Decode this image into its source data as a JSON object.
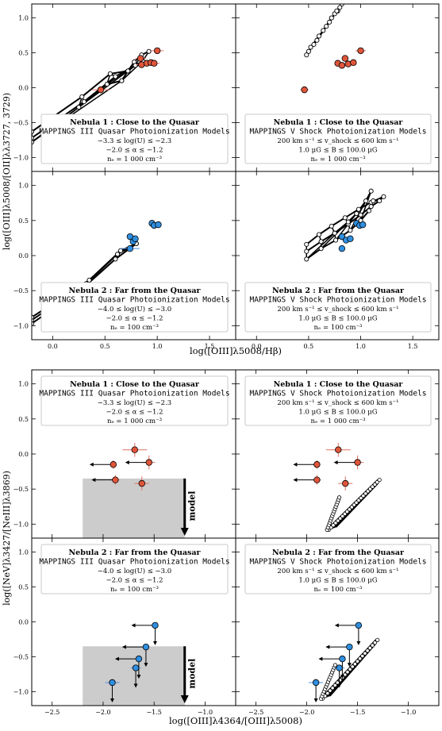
{
  "figure": {
    "top_ylabel": "log([OIII]λ5008/[OII]λλ3727, 3729)",
    "top_xlabel": "log([OIII]λ5008/Hβ)",
    "bottom_ylabel": "log([NeV]λ3427/[NeIII]λ3869)",
    "bottom_xlabel": "log([OIII]λ4364/[OIII]λ5008)",
    "model_label": "model",
    "top_yticks": [
      "−1.0",
      "−0.5",
      "0.0",
      "0.5",
      "1.0"
    ],
    "top_xticks": [
      "0.0",
      "0.5",
      "1.0",
      "1.5"
    ],
    "bottom_yticks": [
      "−1.0",
      "−0.5",
      "0.0",
      "0.5",
      "1.0"
    ],
    "bottom_xticks": [
      "−2.5",
      "−2.0",
      "−1.5",
      "−1.0"
    ]
  },
  "legends": {
    "n1_quasar": [
      "Nebula 1 :  Close to the Quasar",
      "MAPPINGS III Quasar Photoionization Models",
      "−3.3  ≤  log(U)  ≤  −2.3",
      "−2.0  ≤  α  ≤  −1.2",
      "nₑ = 1 000 cm⁻³"
    ],
    "n1_shock": [
      "Nebula 1 :  Close to the Quasar",
      "MAPPINGS V Shock Photoionization Models",
      "200 km s⁻¹  ≤  v_shock  ≤  600 km s⁻¹",
      "1.0 μG  ≤  B  ≤  100.0 μG",
      "nₑ = 1 000 cm⁻³"
    ],
    "n2_quasar": [
      "Nebula 2 :  Far from the Quasar",
      "MAPPINGS III Quasar Photoionization Models",
      "−4.0  ≤  log(U)  ≤  −3.0",
      "−2.0  ≤  α  ≤  −1.2",
      "nₑ = 100 cm⁻³"
    ],
    "n2_shock": [
      "Nebula 2 :  Far from the Quasar",
      "MAPPINGS V Shock Photoionization Models",
      "200 km s⁻¹  ≤  v_shock  ≤  600 km s⁻¹",
      "1.0 μG  ≤  B  ≤  100.0 μG",
      "nₑ = 100 cm⁻³"
    ]
  },
  "colors": {
    "nebula1": "#e0553a",
    "nebula2": "#2f8fe0",
    "errbar1": "#e07060",
    "errbar2": "#4a90e2",
    "shade": "#cccccc"
  },
  "chart_data": [
    {
      "type": "scatter",
      "panel": "top-left",
      "xlim": [
        -0.2,
        1.75
      ],
      "ylim": [
        -1.2,
        1.2
      ],
      "legend": "n1_quasar",
      "color": "nebula1",
      "points": [
        [
          0.46,
          -0.03
        ],
        [
          0.84,
          0.42
        ],
        [
          0.85,
          0.33
        ],
        [
          0.9,
          0.35
        ],
        [
          0.94,
          0.36
        ],
        [
          0.97,
          0.35
        ],
        [
          1.0,
          0.53
        ]
      ],
      "xerr": [
        0.08,
        0.05,
        0.05,
        0.05,
        0.05,
        0.05,
        0.06
      ],
      "grid_rows": [
        [
          [
            0.72,
            0.24
          ],
          [
            0.78,
            0.37
          ],
          [
            0.85,
            0.47
          ],
          [
            0.92,
            0.52
          ]
        ],
        [
          [
            0.66,
            0.1
          ],
          [
            0.72,
            0.24
          ],
          [
            0.79,
            0.32
          ],
          [
            0.86,
            0.38
          ]
        ],
        [
          [
            -0.2,
            -0.78
          ],
          [
            0.25,
            -0.28
          ],
          [
            0.52,
            0.05
          ],
          [
            0.66,
            0.1
          ]
        ],
        [
          [
            -0.2,
            -0.63
          ],
          [
            0.28,
            -0.13
          ],
          [
            0.55,
            0.2
          ],
          [
            0.72,
            0.24
          ]
        ],
        [
          [
            -0.2,
            -0.72
          ],
          [
            0.3,
            -0.2
          ],
          [
            0.6,
            0.16
          ],
          [
            0.79,
            0.32
          ]
        ]
      ]
    },
    {
      "type": "scatter",
      "panel": "top-right",
      "xlim": [
        -0.2,
        1.75
      ],
      "ylim": [
        -1.2,
        1.2
      ],
      "legend": "n1_shock",
      "color": "nebula1",
      "points": [
        [
          0.46,
          -0.03
        ],
        [
          0.78,
          0.35
        ],
        [
          0.82,
          0.32
        ],
        [
          0.85,
          0.42
        ],
        [
          0.88,
          0.34
        ],
        [
          0.93,
          0.36
        ],
        [
          1.0,
          0.53
        ]
      ],
      "xerr": [
        0.04,
        0,
        0,
        0,
        0,
        0,
        0.05
      ],
      "grid_rows": [
        [
          [
            0.48,
            0.47
          ],
          [
            0.55,
            0.62
          ],
          [
            0.64,
            0.82
          ],
          [
            0.72,
            1.0
          ],
          [
            0.78,
            1.1
          ],
          [
            0.82,
            1.2
          ]
        ],
        [
          [
            0.5,
            0.52
          ],
          [
            0.58,
            0.68
          ],
          [
            0.67,
            0.88
          ],
          [
            0.75,
            1.06
          ],
          [
            0.8,
            1.15
          ]
        ],
        [
          [
            0.52,
            0.58
          ],
          [
            0.6,
            0.74
          ],
          [
            0.7,
            0.94
          ],
          [
            0.77,
            1.1
          ]
        ]
      ]
    },
    {
      "type": "scatter",
      "panel": "mid-left",
      "xlim": [
        -0.2,
        1.75
      ],
      "ylim": [
        -1.2,
        1.2
      ],
      "legend": "n2_quasar",
      "color": "nebula2",
      "points": [
        [
          0.74,
          0.1
        ],
        [
          0.74,
          0.27
        ],
        [
          0.77,
          0.2
        ],
        [
          0.79,
          0.24
        ],
        [
          0.95,
          0.46
        ],
        [
          0.97,
          0.43
        ],
        [
          1.01,
          0.44
        ]
      ],
      "xerr": [
        0.09,
        0,
        0,
        0,
        0,
        0,
        0
      ],
      "grid_rows": [
        [
          [
            -0.2,
            -0.97
          ],
          [
            0.3,
            -0.45
          ],
          [
            0.6,
            -0.05
          ],
          [
            0.8,
            0.17
          ]
        ],
        [
          [
            -0.2,
            -0.92
          ],
          [
            0.32,
            -0.4
          ],
          [
            0.62,
            0.02
          ],
          [
            0.8,
            0.17
          ]
        ],
        [
          [
            -0.2,
            -0.88
          ],
          [
            0.35,
            -0.35
          ],
          [
            0.65,
            0.07
          ],
          [
            0.8,
            0.17
          ]
        ]
      ]
    },
    {
      "type": "scatter",
      "panel": "mid-right",
      "xlim": [
        -0.2,
        1.75
      ],
      "ylim": [
        -1.2,
        1.2
      ],
      "legend": "n2_shock",
      "color": "nebula2",
      "points": [
        [
          0.82,
          0.1
        ],
        [
          0.82,
          0.27
        ],
        [
          0.86,
          0.22
        ],
        [
          0.9,
          0.24
        ],
        [
          0.96,
          0.46
        ],
        [
          0.99,
          0.43
        ],
        [
          1.02,
          0.44
        ]
      ],
      "xerr": [
        0,
        0,
        0,
        0,
        0,
        0,
        0
      ],
      "grid_rows": [
        [
          [
            0.48,
            0.16
          ],
          [
            0.6,
            0.3
          ],
          [
            0.72,
            0.42
          ],
          [
            0.85,
            0.54
          ],
          [
            0.98,
            0.66
          ],
          [
            1.1,
            0.76
          ],
          [
            1.22,
            0.84
          ]
        ],
        [
          [
            0.48,
            0.06
          ],
          [
            0.62,
            0.2
          ],
          [
            0.75,
            0.32
          ],
          [
            0.88,
            0.45
          ],
          [
            1.0,
            0.58
          ],
          [
            1.1,
            0.7
          ],
          [
            1.18,
            0.78
          ]
        ],
        [
          [
            0.48,
            -0.05
          ],
          [
            0.62,
            0.1
          ],
          [
            0.76,
            0.22
          ],
          [
            0.9,
            0.36
          ],
          [
            1.0,
            0.5
          ],
          [
            1.08,
            0.64
          ],
          [
            1.12,
            0.78
          ]
        ],
        [
          [
            0.75,
            0.32
          ],
          [
            0.88,
            0.48
          ],
          [
            0.96,
            0.6
          ],
          [
            1.05,
            0.78
          ],
          [
            1.1,
            0.92
          ]
        ]
      ]
    },
    {
      "type": "scatter",
      "panel": "lower-left-1",
      "xlim": [
        -2.7,
        -0.7
      ],
      "ylim": [
        -1.2,
        1.2
      ],
      "legend": "n1_quasar",
      "color": "nebula1",
      "points": [
        [
          -1.9,
          -0.15,
          1,
          0
        ],
        [
          -1.69,
          0.06,
          0,
          0
        ],
        [
          -1.55,
          -0.12,
          1,
          0
        ],
        [
          -1.88,
          -0.37,
          1,
          0
        ],
        [
          -1.62,
          -0.42,
          0,
          0
        ]
      ],
      "xerr": [
        0,
        0.12,
        0.06,
        0.04,
        0.07
      ],
      "yerr": [
        0.06,
        0.1,
        0.1,
        0.07,
        0.1
      ],
      "shade": {
        "x": [
          -2.2,
          -1.2
        ],
        "y": [
          -1.2,
          -0.35
        ]
      },
      "model_arrow": {
        "x": -1.2,
        "y1": -0.35,
        "y2": -1.2
      }
    },
    {
      "type": "scatter",
      "panel": "lower-right-1",
      "xlim": [
        -2.7,
        -0.7
      ],
      "ylim": [
        -1.2,
        1.2
      ],
      "legend": "n1_shock",
      "color": "nebula1",
      "points": [
        [
          -1.9,
          -0.15,
          1,
          0
        ],
        [
          -1.69,
          0.06,
          0,
          0
        ],
        [
          -1.5,
          -0.12,
          1,
          0
        ],
        [
          -1.9,
          -0.37,
          1,
          0
        ],
        [
          -1.62,
          -0.42,
          0,
          0
        ]
      ],
      "xerr": [
        0,
        0.12,
        0.06,
        0.04,
        0.07
      ],
      "yerr": [
        0.06,
        0.1,
        0.1,
        0.07,
        0.1
      ],
      "model_band": [
        [
          -1.8,
          -1.08
        ],
        [
          -1.3,
          -0.37
        ]
      ],
      "model_spur": [
        [
          -1.8,
          -1.08
        ],
        [
          -1.68,
          -0.62
        ]
      ]
    },
    {
      "type": "scatter",
      "panel": "lower-left-2",
      "xlim": [
        -2.7,
        -0.7
      ],
      "ylim": [
        -1.2,
        1.2
      ],
      "legend": "n2_quasar",
      "color": "nebula2",
      "points": [
        [
          -1.49,
          -0.05,
          1,
          1
        ],
        [
          -1.58,
          -0.36,
          1,
          1
        ],
        [
          -1.65,
          -0.53,
          1,
          1
        ],
        [
          -1.68,
          -0.66,
          0,
          1
        ],
        [
          -1.91,
          -0.87,
          0,
          1
        ]
      ],
      "xerr": [
        0,
        0,
        0,
        0.05,
        0.07
      ],
      "yerr": [
        0,
        0,
        0,
        0.04,
        0.05
      ],
      "shade": {
        "x": [
          -2.2,
          -1.2
        ],
        "y": [
          -1.2,
          -0.35
        ]
      },
      "model_arrow": {
        "x": -1.2,
        "y1": -0.35,
        "y2": -1.2
      }
    },
    {
      "type": "scatter",
      "panel": "lower-right-2",
      "xlim": [
        -2.7,
        -0.7
      ],
      "ylim": [
        -1.2,
        1.2
      ],
      "legend": "n2_shock",
      "color": "nebula2",
      "points": [
        [
          -1.49,
          -0.05,
          1,
          1
        ],
        [
          -1.58,
          -0.36,
          1,
          1
        ],
        [
          -1.65,
          -0.53,
          1,
          1
        ],
        [
          -1.68,
          -0.66,
          0,
          1
        ],
        [
          -1.91,
          -0.87,
          0,
          1
        ]
      ],
      "xerr": [
        0,
        0,
        0,
        0.05,
        0.07
      ],
      "yerr": [
        0,
        0,
        0,
        0.04,
        0.05
      ],
      "model_band": [
        [
          -1.86,
          -1.1
        ],
        [
          -1.32,
          -0.26
        ]
      ],
      "model_spur": [
        [
          -1.86,
          -1.1
        ],
        [
          -1.72,
          -0.62
        ]
      ]
    }
  ]
}
